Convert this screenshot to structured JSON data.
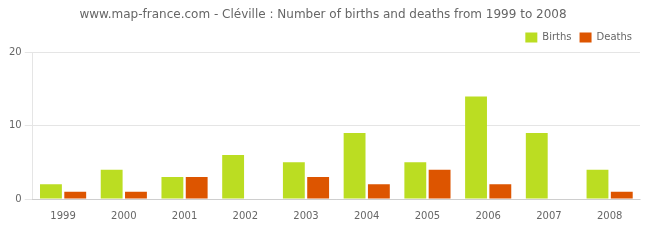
{
  "chart_data": {
    "type": "bar",
    "title": "www.map-france.com - Cléville : Number of births and deaths from 1999 to 2008",
    "categories": [
      "1999",
      "2000",
      "2001",
      "2002",
      "2003",
      "2004",
      "2005",
      "2006",
      "2007",
      "2008"
    ],
    "series": [
      {
        "name": "Births",
        "color": "#bbdd22",
        "values": [
          2,
          4,
          3,
          6,
          5,
          9,
          5,
          14,
          9,
          4
        ]
      },
      {
        "name": "Deaths",
        "color": "#dd5500",
        "values": [
          1,
          1,
          3,
          0,
          3,
          2,
          4,
          2,
          0,
          1
        ]
      }
    ],
    "ylim": [
      0,
      20
    ],
    "yticks": [
      0,
      10,
      20
    ],
    "grid": true,
    "legend": "upper right"
  }
}
